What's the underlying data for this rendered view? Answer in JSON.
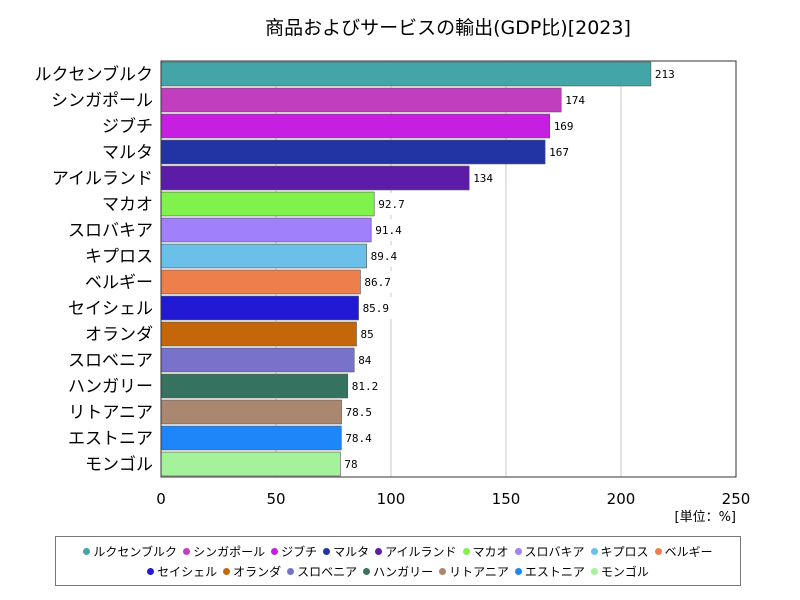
{
  "chart_data": {
    "type": "bar",
    "orientation": "horizontal",
    "title": "商品およびサービスの輸出(GDP比)[2023]",
    "unit_label": "[単位：%]",
    "xlim": [
      0,
      250
    ],
    "xticks": [
      "0",
      "50",
      "100",
      "150",
      "200",
      "250"
    ],
    "grid": true,
    "legend_position": "bottom",
    "categories": [
      "ルクセンブルク",
      "シンガポール",
      "ジブチ",
      "マルタ",
      "アイルランド",
      "マカオ",
      "スロバキア",
      "キプロス",
      "ベルギー",
      "セイシェル",
      "オランダ",
      "スロベニア",
      "ハンガリー",
      "リトアニア",
      "エストニア",
      "モンゴル"
    ],
    "values": [
      213,
      174,
      169,
      167,
      134,
      92.7,
      91.4,
      89.4,
      86.7,
      85.9,
      85,
      84,
      81.2,
      78.5,
      78.4,
      78
    ],
    "value_labels": [
      "213",
      "174",
      "169",
      "167",
      "134",
      "92.7",
      "91.4",
      "89.4",
      "86.7",
      "85.9",
      "85",
      "84",
      "81.2",
      "78.5",
      "78.4",
      "78"
    ],
    "colors": [
      "#43a5a8",
      "#c13ebe",
      "#c61fe1",
      "#2233a3",
      "#5c1ca8",
      "#80f24c",
      "#a080fb",
      "#6ac0e8",
      "#ec7f4b",
      "#2219d4",
      "#c3670a",
      "#7872ca",
      "#357360",
      "#a98770",
      "#1f86fa",
      "#a4f29b"
    ]
  }
}
